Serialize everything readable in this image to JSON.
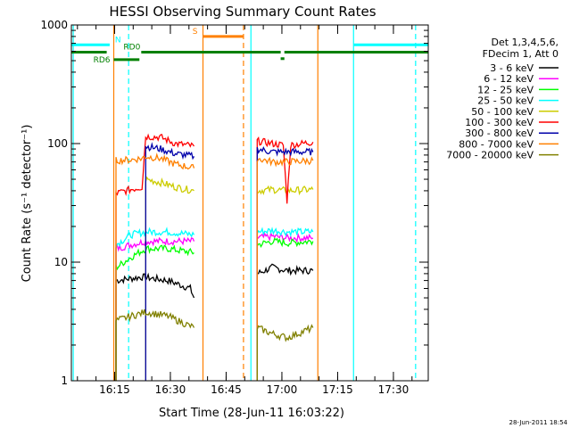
{
  "chart_data": {
    "type": "line",
    "title": "HESSI Observing Summary Count Rates",
    "xlabel": "Start Time (28-Jun-11 16:03:22)",
    "ylabel": "Count Rate (s⁻¹ detector⁻¹)",
    "yscale": "log",
    "ylim": [
      1,
      1000
    ],
    "xlim_minutes": [
      0,
      96
    ],
    "x_tick_labels": [
      "16:15",
      "16:30",
      "16:45",
      "17:00",
      "17:15",
      "17:30"
    ],
    "x_tick_minutes": [
      11.63,
      26.63,
      41.63,
      56.63,
      71.63,
      86.63
    ],
    "y_tick_labels": [
      "1",
      "10",
      "100",
      "1000"
    ],
    "y_tick_values": [
      1,
      10,
      100,
      1000
    ],
    "legend": {
      "header": [
        "Det 1,3,4,5,6,",
        "FDecim 1, Att 0"
      ],
      "placement": "right"
    },
    "series": [
      {
        "name": "3 - 6 keV",
        "color": "#000000",
        "segments": [
          [
            [
              12,
              7
            ],
            [
              19,
              7.5
            ],
            [
              26,
              7
            ],
            [
              32,
              6
            ],
            [
              33,
              5
            ]
          ],
          [
            [
              50,
              8
            ],
            [
              54,
              9
            ],
            [
              58,
              8.5
            ],
            [
              65,
              8.5
            ]
          ]
        ]
      },
      {
        "name": "6 - 12 keV",
        "color": "#ff00ff",
        "segments": [
          [
            [
              12,
              13
            ],
            [
              16,
              14
            ],
            [
              20,
              15
            ],
            [
              26,
              15
            ],
            [
              33,
              15
            ]
          ],
          [
            [
              50,
              16
            ],
            [
              54,
              16.5
            ],
            [
              58,
              16
            ],
            [
              65,
              16
            ]
          ]
        ]
      },
      {
        "name": "12 - 25 keV",
        "color": "#00ff00",
        "segments": [
          [
            [
              12,
              9
            ],
            [
              16,
              11
            ],
            [
              20,
              13
            ],
            [
              26,
              13
            ],
            [
              33,
              12
            ]
          ],
          [
            [
              50,
              14
            ],
            [
              54,
              15
            ],
            [
              58,
              14.5
            ],
            [
              65,
              15
            ]
          ]
        ]
      },
      {
        "name": "25 - 50 keV",
        "color": "#00ffff",
        "segments": [
          [
            [
              12,
              14
            ],
            [
              16,
              17
            ],
            [
              20,
              18
            ],
            [
              26,
              18
            ],
            [
              33,
              17
            ]
          ],
          [
            [
              50,
              18
            ],
            [
              54,
              18.5
            ],
            [
              58,
              18
            ],
            [
              65,
              18
            ]
          ]
        ]
      },
      {
        "name": "50 - 100 keV",
        "color": "#cccc00",
        "segments": [
          [
            [
              20,
              50
            ],
            [
              24,
              47
            ],
            [
              28,
              43
            ],
            [
              33,
              40
            ]
          ],
          [
            [
              50,
              40
            ],
            [
              54,
              41
            ],
            [
              58,
              40
            ],
            [
              65,
              41
            ]
          ]
        ]
      },
      {
        "name": "100 - 300 keV",
        "color": "#ff0000",
        "segments": [
          [
            [
              12,
              38
            ],
            [
              16,
              41
            ],
            [
              19,
              43
            ],
            [
              20,
              115
            ],
            [
              24,
              113
            ],
            [
              28,
              100
            ],
            [
              33,
              95
            ]
          ],
          [
            [
              50,
              105
            ],
            [
              54,
              100
            ],
            [
              57,
              97
            ],
            [
              58,
              33
            ],
            [
              59,
              97
            ],
            [
              65,
              103
            ]
          ]
        ]
      },
      {
        "name": "300 - 800 keV",
        "color": "#0000aa",
        "segments": [
          [
            [
              20,
              95
            ],
            [
              24,
              90
            ],
            [
              28,
              82
            ],
            [
              33,
              78
            ]
          ],
          [
            [
              50,
              90
            ],
            [
              54,
              85
            ],
            [
              58,
              85
            ],
            [
              65,
              85
            ]
          ]
        ]
      },
      {
        "name": "800 - 7000 keV",
        "color": "#ff8000",
        "segments": [
          [
            [
              12,
              72
            ],
            [
              16,
              73
            ],
            [
              19,
              75
            ],
            [
              20,
              78
            ],
            [
              24,
              75
            ],
            [
              28,
              67
            ],
            [
              33,
              62
            ]
          ],
          [
            [
              50,
              75
            ],
            [
              54,
              70
            ],
            [
              58,
              70
            ],
            [
              65,
              72
            ]
          ]
        ]
      },
      {
        "name": "7000 - 20000 keV",
        "color": "#808000",
        "segments": [
          [
            [
              12,
              3.2
            ],
            [
              16,
              3.5
            ],
            [
              20,
              3.8
            ],
            [
              26,
              3.5
            ],
            [
              33,
              2.8
            ]
          ],
          [
            [
              50,
              2.8
            ],
            [
              54,
              2.5
            ],
            [
              58,
              2.3
            ],
            [
              65,
              2.8
            ]
          ]
        ]
      }
    ],
    "state_bars": [
      {
        "label": "N",
        "color": "#00ffff",
        "level": 680,
        "segments": [
          [
            0,
            10.3
          ],
          [
            76,
            96
          ]
        ]
      },
      {
        "label": "S",
        "color": "#ff8000",
        "level": 800,
        "segments": [
          [
            35.4,
            46.3
          ]
        ]
      },
      {
        "label": "RD0",
        "color": "#008000",
        "level": 590,
        "segments": [
          [
            0,
            9.5
          ],
          [
            18.8,
            56.3
          ],
          [
            57.3,
            96
          ]
        ]
      },
      {
        "label": "RD6",
        "color": "#008000",
        "level": 510,
        "segments": [
          [
            11.4,
            18.3
          ]
        ]
      }
    ],
    "small_marks": [
      {
        "color": "#008000",
        "level": 520,
        "segments": [
          [
            56.3,
            57.3
          ]
        ]
      }
    ],
    "vertical_markers": [
      {
        "minute": 0.5,
        "color": "#00ffff",
        "style": "solid"
      },
      {
        "minute": 11.4,
        "color": "#ff8000",
        "style": "solid"
      },
      {
        "minute": 15.4,
        "color": "#00ffff",
        "style": "dashed"
      },
      {
        "minute": 35.4,
        "color": "#ff8000",
        "style": "solid"
      },
      {
        "minute": 46.3,
        "color": "#ff8000",
        "style": "dashed"
      },
      {
        "minute": 48.3,
        "color": "#00ffff",
        "style": "solid"
      },
      {
        "minute": 66.3,
        "color": "#ff8000",
        "style": "solid"
      },
      {
        "minute": 75.9,
        "color": "#00ffff",
        "style": "solid"
      },
      {
        "minute": 92.6,
        "color": "#00ffff",
        "style": "dashed"
      }
    ],
    "grid": false
  },
  "footer": {
    "timestamp": "28-Jun-2011 18:54"
  }
}
